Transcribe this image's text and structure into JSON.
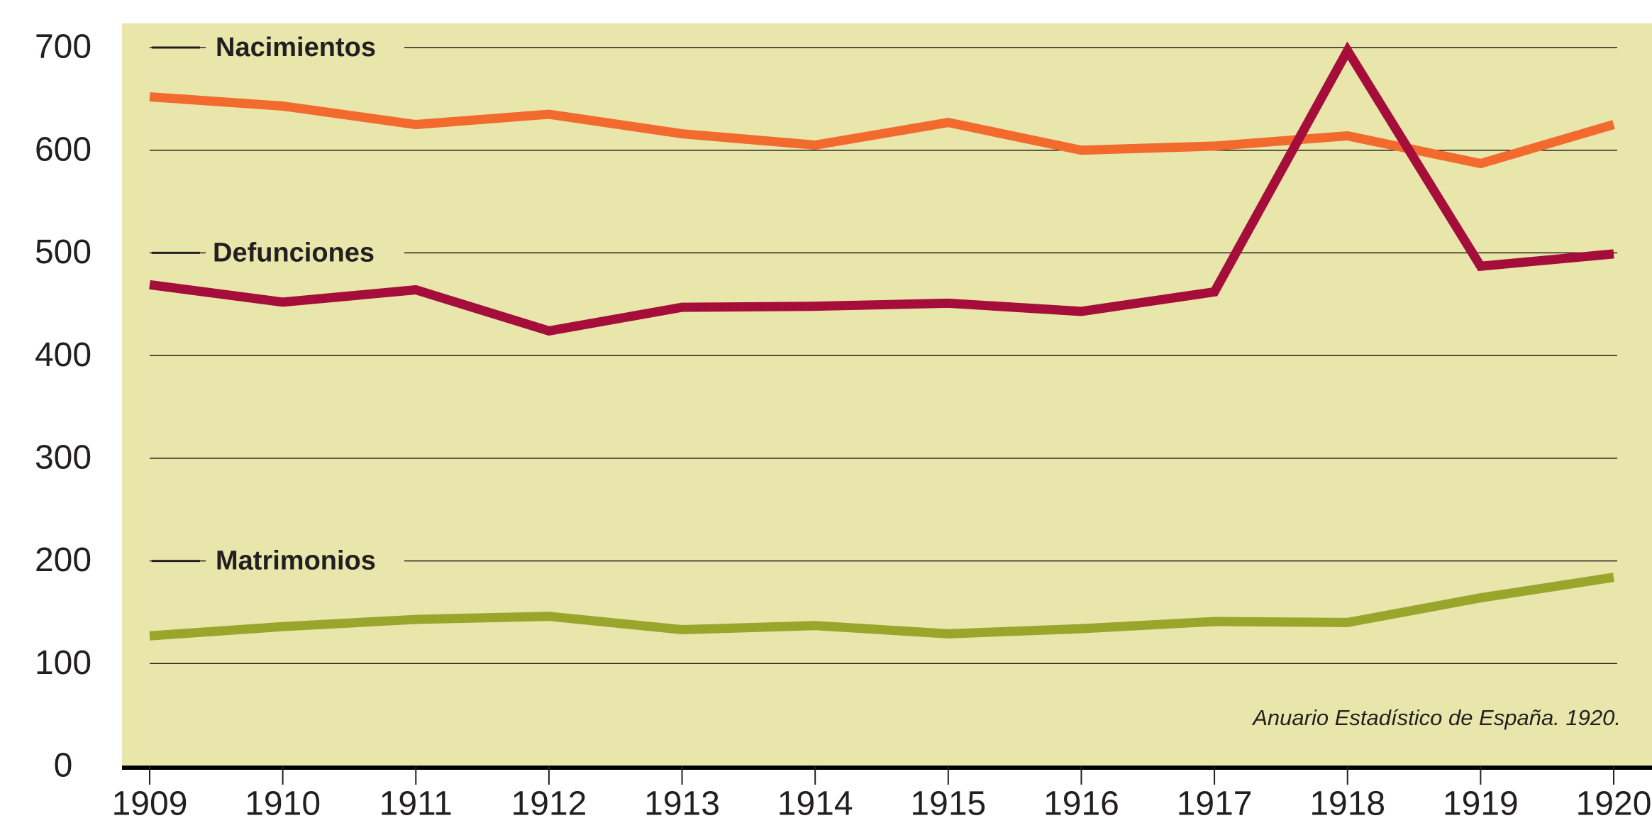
{
  "chart_data": {
    "type": "line",
    "source": "Anuario Estadístico de España. 1920.",
    "categories": [
      "1909",
      "1910",
      "1911",
      "1912",
      "1913",
      "1914",
      "1915",
      "1916",
      "1917",
      "1918",
      "1919",
      "1920"
    ],
    "series": [
      {
        "name": "Nacimientos",
        "color": "#f26a2e",
        "values": [
          652,
          643,
          625,
          635,
          616,
          605,
          627,
          600,
          604,
          614,
          587,
          625
        ]
      },
      {
        "name": "Defunciones",
        "color": "#a50d3a",
        "values": [
          469,
          452,
          464,
          424,
          447,
          448,
          451,
          443,
          462,
          697,
          487,
          499
        ]
      },
      {
        "name": "Matrimonios",
        "color": "#9aa52c",
        "values": [
          127,
          136,
          143,
          146,
          133,
          137,
          129,
          134,
          141,
          140,
          164,
          184
        ]
      }
    ],
    "ylim": [
      0,
      700
    ],
    "yticks": [
      0,
      100,
      200,
      300,
      400,
      500,
      600,
      700
    ],
    "grid": true
  }
}
